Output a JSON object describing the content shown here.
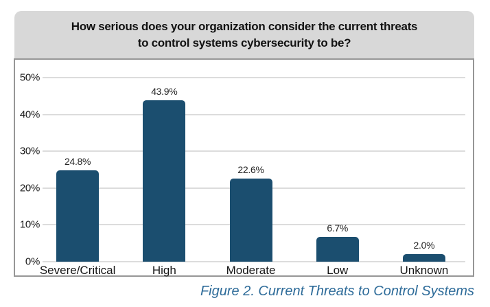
{
  "title": {
    "line1": "How serious does your organization consider the current threats",
    "line2": "to control systems cybersecurity to be?"
  },
  "chart_data": {
    "type": "bar",
    "title": "How serious does your organization consider the current threats to control systems cybersecurity to be?",
    "categories": [
      "Severe/Critical",
      "High",
      "Moderate",
      "Low",
      "Unknown"
    ],
    "values": [
      24.8,
      43.9,
      22.6,
      6.7,
      2.0
    ],
    "value_labels": [
      "24.8%",
      "43.9%",
      "22.6%",
      "6.7%",
      "2.0%"
    ],
    "xlabel": "",
    "ylabel": "",
    "ylim": [
      0,
      50
    ],
    "ytick_step": 10,
    "yticks": [
      "0%",
      "10%",
      "20%",
      "30%",
      "40%",
      "50%"
    ],
    "grid": true,
    "legend": false,
    "bar_color": "#1B4E6F"
  },
  "caption": "Figure 2. Current Threats to Control Systems",
  "colors": {
    "bar": "#1B4E6F",
    "title_box_bg": "#d8d8d8",
    "frame_border": "#969696",
    "gridline": "#dcdcdc",
    "caption_text": "#2d6b99"
  }
}
